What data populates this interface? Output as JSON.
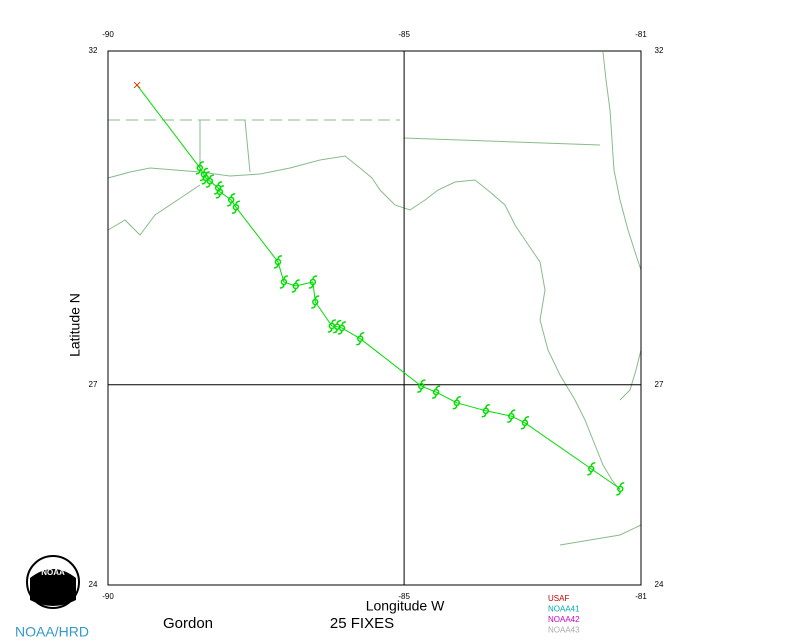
{
  "chart_data": {
    "type": "track",
    "storm": "Gordon",
    "fix_text": "25 FIXES",
    "xlabel": "Longitude W",
    "ylabel": "Latitude N",
    "credit": "NOAA/HRD",
    "logo_text": "NOAA",
    "xlim": [
      -90,
      -81
    ],
    "ylim": [
      24,
      32
    ],
    "xticks": [
      -90,
      -85,
      -81
    ],
    "yticks": [
      24,
      27,
      32
    ],
    "grid": true,
    "color": "#00dd00",
    "start": {
      "lon": -89.51,
      "lat": 31.49,
      "color": "#cc3300"
    },
    "fixes": {
      "lon": [
        -88.45,
        -88.38,
        -88.35,
        -88.28,
        -88.14,
        -88.11,
        -87.92,
        -87.84,
        -87.13,
        -87.03,
        -86.83,
        -86.54,
        -86.5,
        -86.22,
        -86.13,
        -86.05,
        -85.74,
        -84.71,
        -84.46,
        -84.11,
        -83.62,
        -83.19,
        -82.96,
        -81.84,
        -81.35
      ],
      "lat": [
        30.25,
        30.15,
        30.1,
        30.05,
        29.95,
        29.89,
        29.77,
        29.66,
        28.84,
        28.54,
        28.48,
        28.54,
        28.24,
        27.88,
        27.87,
        27.85,
        27.69,
        26.98,
        26.89,
        26.73,
        26.61,
        26.53,
        26.43,
        25.74,
        25.44
      ]
    },
    "platforms": [
      {
        "name": "USAF",
        "color": "#cc0000"
      },
      {
        "name": "NOAA41",
        "color": "#00aaaa"
      },
      {
        "name": "NOAA42",
        "color": "#cc00cc"
      },
      {
        "name": "NOAA43",
        "color": "#aaaaaa"
      }
    ]
  }
}
